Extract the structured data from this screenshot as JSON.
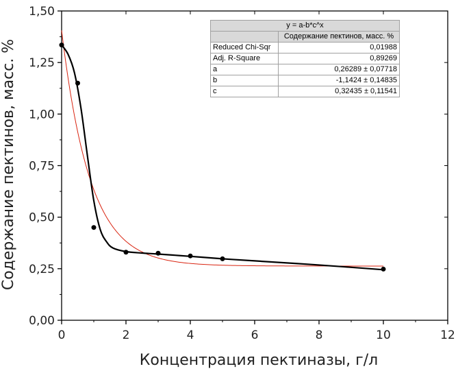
{
  "chart_data": {
    "type": "scatter",
    "xlabel": "Концентрация пектиназы, г/л",
    "ylabel": "Содержание пектинов, масс. %",
    "xlim": [
      0,
      12
    ],
    "ylim": [
      0,
      1.5
    ],
    "x_ticks": [
      0,
      2,
      4,
      6,
      8,
      10,
      12
    ],
    "y_ticks": [
      0,
      0.25,
      0.5,
      0.75,
      1.0,
      1.25,
      1.5
    ],
    "x_tick_labels": [
      "0",
      "2",
      "4",
      "6",
      "8",
      "10",
      "12"
    ],
    "y_tick_labels": [
      "0,00",
      "0,25",
      "0,50",
      "0,75",
      "1,00",
      "1,25",
      "1,50"
    ],
    "grid": false,
    "points": [
      {
        "x": 0,
        "y": 1.335
      },
      {
        "x": 0.5,
        "y": 1.15
      },
      {
        "x": 1,
        "y": 0.45
      },
      {
        "x": 2,
        "y": 0.33
      },
      {
        "x": 3,
        "y": 0.325
      },
      {
        "x": 4,
        "y": 0.312
      },
      {
        "x": 5,
        "y": 0.298
      },
      {
        "x": 10,
        "y": 0.248
      }
    ],
    "smooth_curve": {
      "x": [
        0,
        0.2,
        0.4,
        0.6,
        0.8,
        1.0,
        1.2,
        1.4,
        1.6,
        2.0,
        2.5,
        3,
        4,
        5,
        6,
        8,
        10
      ],
      "y": [
        1.335,
        1.29,
        1.2,
        1.03,
        0.8,
        0.58,
        0.44,
        0.38,
        0.35,
        0.333,
        0.326,
        0.321,
        0.31,
        0.298,
        0.288,
        0.268,
        0.245
      ]
    },
    "fit": {
      "equation": "y = a-b*c^x",
      "a": 0.26289,
      "b": -1.1424,
      "c": 0.32435
    },
    "fit_table": {
      "title": "y = a-b*c^x",
      "column_header": "Содержание пектинов, масс. %",
      "rows": [
        {
          "label": "Reduced Chi-Sqr",
          "value": "0,01988"
        },
        {
          "label": "Adj. R-Square",
          "value": "0,89269"
        },
        {
          "label": "a",
          "value": "0,26289 ± 0,07718"
        },
        {
          "label": "b",
          "value": "-1,1424 ± 0,14835"
        },
        {
          "label": "c",
          "value": "0,32435 ± 0,11541"
        }
      ]
    },
    "colors": {
      "points": "#000000",
      "smooth_curve": "#000000",
      "fit_curve": "#d9230f",
      "axes": "#000000"
    }
  }
}
